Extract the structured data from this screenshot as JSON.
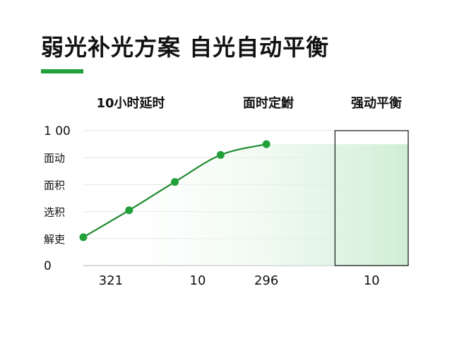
{
  "title": "弱光补光方案 自光自动平衡",
  "columns": [
    "10小时延时",
    "面时定鮒",
    "强动平衡"
  ],
  "colors": {
    "accent": "#22a03a",
    "line": "#1e8a2e",
    "fill": "#d9f2dc",
    "grid": "#e6e6e6",
    "highlight": "#111111"
  },
  "chart_data": {
    "type": "line",
    "title": "弱光补光方案 自光自动平衡",
    "y_tick_labels": [
      "0",
      "解吏",
      "选积",
      "面积",
      "面动",
      "1 00"
    ],
    "ylim": [
      0,
      100
    ],
    "categories": [
      "321",
      "10",
      "296",
      "10"
    ],
    "points": [
      {
        "x": 0,
        "y": 21
      },
      {
        "x": 1,
        "y": 41
      },
      {
        "x": 2,
        "y": 62
      },
      {
        "x": 3,
        "y": 82
      },
      {
        "x": 4,
        "y": 90
      }
    ],
    "x_tick_labels": [
      {
        "label": "321",
        "x": 0.6
      },
      {
        "label": "10",
        "x": 2.5
      },
      {
        "label": "296",
        "x": 4.0
      },
      {
        "label": "10",
        "x": 6.3
      }
    ],
    "highlight_range": [
      5.5,
      7.1
    ],
    "grid": true,
    "area_fill": true
  }
}
